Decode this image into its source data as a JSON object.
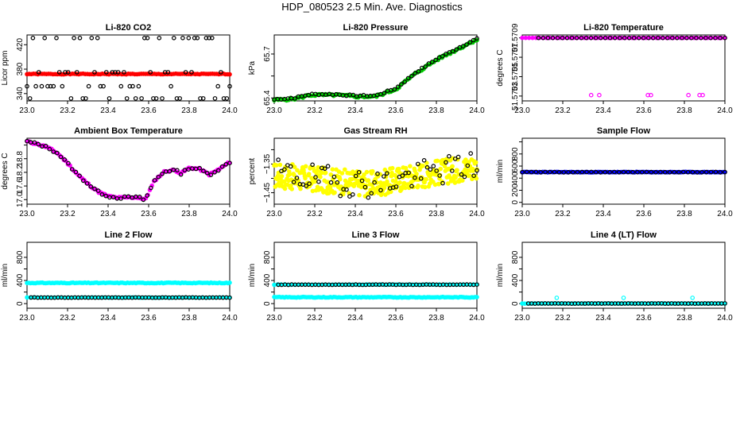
{
  "title": "HDP_080523  2.5 Min. Ave. Diagnostics",
  "colors": {
    "black": "#000000",
    "red": "#ff0000",
    "green": "#00cc00",
    "magenta": "#ff00ff",
    "yellow": "#ffff00",
    "blue": "#0000ff",
    "cyan": "#00ffff"
  },
  "chart_data": [
    {
      "type": "scatter",
      "title": "Li-820 CO2",
      "ylabel": "Licor ppm",
      "xlim": [
        23.0,
        24.0
      ],
      "ylim": [
        328,
        436
      ],
      "xticks": [
        "23.0",
        "23.2",
        "23.4",
        "23.6",
        "23.8",
        "24.0"
      ],
      "yticks": [
        {
          "v": 340,
          "label": "340"
        },
        {
          "v": 380,
          "label": "380"
        },
        {
          "v": 420,
          "label": "420"
        }
      ],
      "series": [
        {
          "name": "filled",
          "color": "red",
          "fill": true,
          "gen": {
            "n": 95,
            "x0": 23.0,
            "x1": 24.0,
            "mode": "flat",
            "base": 372,
            "amp": 0.6
          }
        },
        {
          "name": "open",
          "color": "black",
          "fill": false,
          "gen": {
            "n": 70,
            "x0": 23.0,
            "x1": 24.0,
            "mode": "levels",
            "levels": [
              332,
              352,
              375,
              431
            ],
            "seed": 3
          }
        }
      ]
    },
    {
      "type": "scatter",
      "title": "Li-820 Pressure",
      "ylabel": "kPa",
      "xlim": [
        23.0,
        24.0
      ],
      "ylim": [
        65.38,
        65.83
      ],
      "xticks": [
        "23.0",
        "23.2",
        "23.4",
        "23.6",
        "23.8",
        "24.0"
      ],
      "yticks": [
        {
          "v": 65.4,
          "label": "65.4"
        },
        {
          "v": 65.55,
          "label": ""
        },
        {
          "v": 65.7,
          "label": "65.7"
        }
      ],
      "series": [
        {
          "name": "filled",
          "color": "green",
          "fill": true,
          "gen": {
            "n": 100,
            "x0": 23.0,
            "x1": 24.0,
            "mode": "path",
            "pts": [
              [
                23.0,
                65.385
              ],
              [
                23.1,
                65.395
              ],
              [
                23.18,
                65.42
              ],
              [
                23.3,
                65.42
              ],
              [
                23.4,
                65.41
              ],
              [
                23.5,
                65.41
              ],
              [
                23.6,
                65.46
              ],
              [
                23.7,
                65.57
              ],
              [
                23.8,
                65.66
              ],
              [
                23.9,
                65.73
              ],
              [
                24.0,
                65.8
              ]
            ],
            "amp": 0.008,
            "seed": 5
          }
        },
        {
          "name": "open",
          "color": "black",
          "fill": false,
          "gen": {
            "n": 60,
            "x0": 23.0,
            "x1": 24.0,
            "mode": "path",
            "pts": [
              [
                23.0,
                65.39
              ],
              [
                23.1,
                65.4
              ],
              [
                23.18,
                65.425
              ],
              [
                23.3,
                65.425
              ],
              [
                23.4,
                65.415
              ],
              [
                23.5,
                65.415
              ],
              [
                23.6,
                65.465
              ],
              [
                23.7,
                65.575
              ],
              [
                23.8,
                65.665
              ],
              [
                23.9,
                65.735
              ],
              [
                24.0,
                65.805
              ]
            ],
            "amp": 0.005,
            "seed": 7
          }
        }
      ]
    },
    {
      "type": "scatter",
      "title": "Li-820 Temperature",
      "ylabel": "degrees C",
      "xlim": [
        23.0,
        24.0
      ],
      "ylim": [
        51.57025,
        51.57093
      ],
      "xticks": [
        "23.0",
        "23.2",
        "23.4",
        "23.6",
        "23.8",
        "24.0"
      ],
      "yticks": [
        {
          "v": 51.5703,
          "label": "51.5703"
        },
        {
          "v": 51.5705,
          "label": "51.5705"
        },
        {
          "v": 51.5707,
          "label": "51.5707"
        },
        {
          "v": 51.5709,
          "label": "51.5709"
        }
      ],
      "series": [
        {
          "name": "filled",
          "color": "magenta",
          "fill": true,
          "gen": {
            "n": 60,
            "x0": 23.0,
            "x1": 24.0,
            "mode": "flat",
            "base": 51.5709,
            "amp": 0.0
          }
        },
        {
          "name": "open",
          "color": "black",
          "fill": false,
          "gen": {
            "n": 40,
            "x0": 23.08,
            "x1": 24.0,
            "mode": "flat",
            "base": 51.5709,
            "amp": 0.0
          }
        },
        {
          "name": "outliers",
          "color": "magenta",
          "fill": false,
          "gen": {
            "mode": "list",
            "pts": [
              [
                23.34,
                51.57031
              ],
              [
                23.38,
                51.57031
              ],
              [
                23.62,
                51.57031
              ],
              [
                23.635,
                51.57031
              ],
              [
                23.82,
                51.57031
              ],
              [
                23.875,
                51.57031
              ],
              [
                23.89,
                51.57031
              ]
            ]
          }
        }
      ]
    },
    {
      "type": "scatter",
      "title": "Ambient Box Temperature",
      "ylabel": "degrees C",
      "xlim": [
        23.0,
        24.0
      ],
      "ylim": [
        16.8,
        19.7
      ],
      "xticks": [
        "23.0",
        "23.2",
        "23.4",
        "23.6",
        "23.8",
        "24.0"
      ],
      "yticks": [
        {
          "v": 17.0,
          "label": "17.0"
        },
        {
          "v": 17.6,
          "label": "17.6"
        },
        {
          "v": 18.2,
          "label": "18.2"
        },
        {
          "v": 18.8,
          "label": "18.8"
        },
        {
          "v": 19.4,
          "label": ""
        }
      ],
      "series": [
        {
          "name": "filled",
          "color": "magenta",
          "fill": true,
          "gen": {
            "n": 100,
            "x0": 23.0,
            "x1": 24.0,
            "mode": "path",
            "pts": [
              [
                23.0,
                19.55
              ],
              [
                23.05,
                19.45
              ],
              [
                23.1,
                19.3
              ],
              [
                23.15,
                19.05
              ],
              [
                23.2,
                18.6
              ],
              [
                23.25,
                18.1
              ],
              [
                23.3,
                17.7
              ],
              [
                23.35,
                17.35
              ],
              [
                23.4,
                17.15
              ],
              [
                23.45,
                17.08
              ],
              [
                23.5,
                17.1
              ],
              [
                23.55,
                17.1
              ],
              [
                23.58,
                16.98
              ],
              [
                23.6,
                17.3
              ],
              [
                23.63,
                17.85
              ],
              [
                23.68,
                18.25
              ],
              [
                23.73,
                18.3
              ],
              [
                23.76,
                18.15
              ],
              [
                23.8,
                18.4
              ],
              [
                23.85,
                18.35
              ],
              [
                23.9,
                18.1
              ],
              [
                23.95,
                18.35
              ],
              [
                24.0,
                18.65
              ]
            ],
            "amp": 0.04,
            "seed": 11
          }
        },
        {
          "name": "open",
          "color": "black",
          "fill": false,
          "gen": {
            "n": 55,
            "x0": 23.0,
            "x1": 24.0,
            "mode": "path",
            "pts": [
              [
                23.0,
                19.55
              ],
              [
                23.05,
                19.45
              ],
              [
                23.1,
                19.3
              ],
              [
                23.15,
                19.05
              ],
              [
                23.2,
                18.6
              ],
              [
                23.25,
                18.1
              ],
              [
                23.3,
                17.7
              ],
              [
                23.35,
                17.35
              ],
              [
                23.4,
                17.15
              ],
              [
                23.45,
                17.08
              ],
              [
                23.5,
                17.1
              ],
              [
                23.55,
                17.1
              ],
              [
                23.58,
                16.98
              ],
              [
                23.6,
                17.3
              ],
              [
                23.63,
                17.85
              ],
              [
                23.68,
                18.25
              ],
              [
                23.73,
                18.3
              ],
              [
                23.76,
                18.15
              ],
              [
                23.8,
                18.4
              ],
              [
                23.85,
                18.35
              ],
              [
                23.9,
                18.1
              ],
              [
                23.95,
                18.35
              ],
              [
                24.0,
                18.65
              ]
            ],
            "amp": 0.05,
            "seed": 13
          }
        }
      ]
    },
    {
      "type": "scatter",
      "title": "Gas Stream RH",
      "ylabel": "percent",
      "xlim": [
        23.0,
        24.0
      ],
      "ylim": [
        -1.49,
        -1.26
      ],
      "xticks": [
        "23.0",
        "23.2",
        "23.4",
        "23.6",
        "23.8",
        "24.0"
      ],
      "yticks": [
        {
          "v": -1.45,
          "label": "−1.45"
        },
        {
          "v": -1.4,
          "label": ""
        },
        {
          "v": -1.35,
          "label": "−1.35"
        },
        {
          "v": -1.3,
          "label": ""
        }
      ],
      "series": [
        {
          "name": "filled",
          "color": "yellow",
          "fill": true,
          "gen": {
            "n": 380,
            "x0": 23.0,
            "x1": 24.0,
            "mode": "path",
            "pts": [
              [
                23.0,
                -1.39
              ],
              [
                23.3,
                -1.41
              ],
              [
                23.5,
                -1.42
              ],
              [
                23.7,
                -1.39
              ],
              [
                24.0,
                -1.36
              ]
            ],
            "amp": 0.045,
            "seed": 17
          }
        },
        {
          "name": "open",
          "color": "black",
          "fill": false,
          "gen": {
            "n": 65,
            "x0": 23.02,
            "x1": 24.0,
            "mode": "path",
            "pts": [
              [
                23.0,
                -1.38
              ],
              [
                23.3,
                -1.41
              ],
              [
                23.5,
                -1.42
              ],
              [
                23.7,
                -1.39
              ],
              [
                24.0,
                -1.35
              ]
            ],
            "amp": 0.05,
            "seed": 19
          }
        }
      ]
    },
    {
      "type": "scatter",
      "title": "Sample Flow",
      "ylabel": "ml/min",
      "xlim": [
        23.0,
        24.0
      ],
      "ylim": [
        -30,
        1060
      ],
      "xticks": [
        "23.0",
        "23.2",
        "23.4",
        "23.6",
        "23.8",
        "24.0"
      ],
      "yticks": [
        {
          "v": 0,
          "label": "0"
        },
        {
          "v": 200,
          "label": "200"
        },
        {
          "v": 400,
          "label": "400"
        },
        {
          "v": 600,
          "label": "600"
        },
        {
          "v": 800,
          "label": "800"
        },
        {
          "v": 1000,
          "label": ""
        }
      ],
      "series": [
        {
          "name": "filled",
          "color": "blue",
          "fill": true,
          "gen": {
            "n": 120,
            "x0": 23.0,
            "x1": 24.0,
            "mode": "flat",
            "base": 500,
            "amp": 4,
            "seed": 23
          }
        },
        {
          "name": "open",
          "color": "black",
          "fill": false,
          "gen": {
            "n": 45,
            "x0": 23.0,
            "x1": 24.0,
            "mode": "flat",
            "base": 500,
            "amp": 3,
            "seed": 29
          }
        }
      ]
    },
    {
      "type": "scatter",
      "title": "Line 2 Flow",
      "ylabel": "ml/min",
      "xlim": [
        23.0,
        24.0
      ],
      "ylim": [
        -80,
        1060
      ],
      "xticks": [
        "23.0",
        "23.2",
        "23.4",
        "23.6",
        "23.8",
        "24.0"
      ],
      "yticks": [
        {
          "v": 0,
          "label": "0"
        },
        {
          "v": 200,
          "label": ""
        },
        {
          "v": 400,
          "label": "400"
        },
        {
          "v": 600,
          "label": ""
        },
        {
          "v": 800,
          "label": "800"
        }
      ],
      "series": [
        {
          "name": "upper",
          "color": "cyan",
          "fill": true,
          "gen": {
            "n": 120,
            "x0": 23.0,
            "x1": 24.0,
            "mode": "flat",
            "base": 358,
            "amp": 6,
            "seed": 31
          }
        },
        {
          "name": "lower-fill",
          "color": "cyan",
          "fill": true,
          "gen": {
            "n": 60,
            "x0": 23.0,
            "x1": 24.0,
            "mode": "flat",
            "base": 105,
            "amp": 3,
            "seed": 37
          }
        },
        {
          "name": "lower-open",
          "color": "black",
          "fill": false,
          "gen": {
            "n": 60,
            "x0": 23.02,
            "x1": 24.0,
            "mode": "flat",
            "base": 105,
            "amp": 3,
            "seed": 41
          }
        }
      ]
    },
    {
      "type": "scatter",
      "title": "Line 3 Flow",
      "ylabel": "ml/min",
      "xlim": [
        23.0,
        24.0
      ],
      "ylim": [
        -80,
        1060
      ],
      "xticks": [
        "23.0",
        "23.2",
        "23.4",
        "23.6",
        "23.8",
        "24.0"
      ],
      "yticks": [
        {
          "v": 0,
          "label": "0"
        },
        {
          "v": 200,
          "label": ""
        },
        {
          "v": 400,
          "label": "400"
        },
        {
          "v": 600,
          "label": ""
        },
        {
          "v": 800,
          "label": "800"
        }
      ],
      "series": [
        {
          "name": "lower",
          "color": "cyan",
          "fill": true,
          "gen": {
            "n": 120,
            "x0": 23.0,
            "x1": 24.0,
            "mode": "flat",
            "base": 110,
            "amp": 6,
            "seed": 43
          }
        },
        {
          "name": "upper-fill",
          "color": "cyan",
          "fill": true,
          "gen": {
            "n": 60,
            "x0": 23.0,
            "x1": 24.0,
            "mode": "flat",
            "base": 328,
            "amp": 3,
            "seed": 47
          }
        },
        {
          "name": "upper-open",
          "color": "black",
          "fill": false,
          "gen": {
            "n": 60,
            "x0": 23.02,
            "x1": 24.0,
            "mode": "flat",
            "base": 328,
            "amp": 3,
            "seed": 53
          }
        }
      ]
    },
    {
      "type": "scatter",
      "title": "Line 4 (LT) Flow",
      "ylabel": "ml/min",
      "xlim": [
        23.0,
        24.0
      ],
      "ylim": [
        -80,
        1060
      ],
      "xticks": [
        "23.0",
        "23.2",
        "23.4",
        "23.6",
        "23.8",
        "24.0"
      ],
      "yticks": [
        {
          "v": 0,
          "label": "0"
        },
        {
          "v": 200,
          "label": ""
        },
        {
          "v": 400,
          "label": "400"
        },
        {
          "v": 600,
          "label": ""
        },
        {
          "v": 800,
          "label": "800"
        }
      ],
      "series": [
        {
          "name": "filled",
          "color": "cyan",
          "fill": true,
          "gen": {
            "n": 80,
            "x0": 23.0,
            "x1": 24.0,
            "mode": "flat",
            "base": 2,
            "amp": 2,
            "seed": 59
          }
        },
        {
          "name": "open",
          "color": "black",
          "fill": false,
          "gen": {
            "n": 60,
            "x0": 23.03,
            "x1": 24.0,
            "mode": "flat",
            "base": 2,
            "amp": 2,
            "seed": 61
          }
        },
        {
          "name": "spikes",
          "color": "cyan",
          "fill": false,
          "gen": {
            "mode": "list",
            "pts": [
              [
                23.17,
                100
              ],
              [
                23.5,
                100
              ],
              [
                23.84,
                100
              ]
            ]
          }
        }
      ]
    }
  ]
}
